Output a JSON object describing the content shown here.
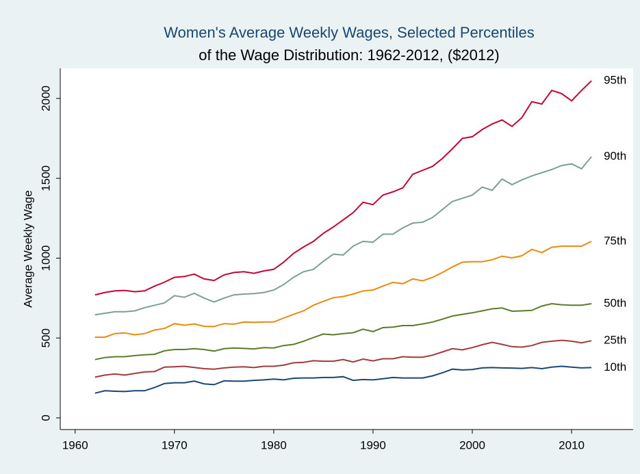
{
  "chart_data": {
    "type": "line",
    "title": "Women's Average Weekly Wages, Selected Percentiles",
    "subtitle": "of the Wage Distribution: 1962-2012, ($2012)",
    "y_label": "Average Weekly Wage",
    "x": [
      1962,
      1963,
      1964,
      1965,
      1966,
      1967,
      1968,
      1969,
      1970,
      1971,
      1972,
      1973,
      1974,
      1975,
      1976,
      1977,
      1978,
      1979,
      1980,
      1981,
      1982,
      1983,
      1984,
      1985,
      1986,
      1987,
      1988,
      1989,
      1990,
      1991,
      1992,
      1993,
      1994,
      1995,
      1996,
      1997,
      1998,
      1999,
      2000,
      2001,
      2002,
      2003,
      2004,
      2005,
      2006,
      2007,
      2008,
      2009,
      2010,
      2011,
      2012
    ],
    "series": [
      {
        "name": "95th",
        "color": "#c10534",
        "values": [
          770,
          785,
          795,
          798,
          790,
          795,
          825,
          850,
          880,
          885,
          900,
          870,
          860,
          895,
          910,
          915,
          905,
          920,
          930,
          975,
          1030,
          1070,
          1105,
          1155,
          1195,
          1240,
          1285,
          1350,
          1335,
          1395,
          1415,
          1440,
          1525,
          1550,
          1575,
          1625,
          1685,
          1750,
          1760,
          1805,
          1840,
          1865,
          1825,
          1880,
          1980,
          1965,
          2050,
          2030,
          1985,
          2050,
          2110
        ]
      },
      {
        "name": "90th",
        "color": "#7f9c9a",
        "values": [
          645,
          655,
          665,
          665,
          670,
          690,
          705,
          720,
          765,
          755,
          780,
          750,
          725,
          750,
          770,
          775,
          778,
          785,
          800,
          835,
          880,
          915,
          930,
          980,
          1025,
          1020,
          1075,
          1105,
          1100,
          1150,
          1150,
          1190,
          1220,
          1225,
          1255,
          1305,
          1355,
          1375,
          1395,
          1445,
          1425,
          1495,
          1460,
          1490,
          1515,
          1535,
          1555,
          1580,
          1590,
          1560,
          1635
        ]
      },
      {
        "name": "75th",
        "color": "#ea8a0c",
        "values": [
          505,
          505,
          528,
          532,
          520,
          528,
          550,
          560,
          590,
          580,
          588,
          573,
          572,
          590,
          587,
          600,
          598,
          600,
          600,
          625,
          648,
          670,
          705,
          730,
          752,
          760,
          775,
          795,
          800,
          825,
          848,
          840,
          870,
          858,
          880,
          910,
          945,
          975,
          978,
          978,
          990,
          1012,
          1002,
          1015,
          1055,
          1035,
          1068,
          1075,
          1075,
          1075,
          1105
        ]
      },
      {
        "name": "50th",
        "color": "#5b7a2c",
        "values": [
          365,
          378,
          383,
          383,
          390,
          395,
          398,
          420,
          428,
          428,
          433,
          428,
          418,
          433,
          438,
          435,
          432,
          440,
          438,
          453,
          460,
          480,
          503,
          525,
          520,
          528,
          533,
          555,
          540,
          565,
          568,
          578,
          578,
          588,
          600,
          618,
          638,
          648,
          658,
          670,
          683,
          688,
          668,
          670,
          673,
          700,
          715,
          708,
          705,
          705,
          715
        ]
      },
      {
        "name": "25th",
        "color": "#a03a3c",
        "values": [
          255,
          268,
          275,
          268,
          278,
          288,
          290,
          318,
          320,
          323,
          316,
          308,
          305,
          313,
          318,
          320,
          315,
          323,
          323,
          330,
          345,
          348,
          358,
          355,
          355,
          365,
          350,
          368,
          357,
          370,
          370,
          383,
          380,
          380,
          393,
          413,
          433,
          426,
          440,
          458,
          473,
          460,
          446,
          443,
          453,
          473,
          480,
          486,
          480,
          470,
          483
        ]
      },
      {
        "name": "10th",
        "color": "#1a476f",
        "values": [
          155,
          170,
          167,
          165,
          170,
          170,
          190,
          215,
          220,
          220,
          230,
          213,
          208,
          232,
          230,
          230,
          235,
          238,
          243,
          238,
          248,
          250,
          250,
          253,
          253,
          258,
          235,
          240,
          238,
          245,
          253,
          250,
          250,
          250,
          263,
          283,
          305,
          300,
          303,
          313,
          315,
          313,
          312,
          310,
          315,
          308,
          318,
          323,
          318,
          313,
          315
        ]
      }
    ],
    "xlim": [
      1958.5,
      2016.2
    ],
    "xticks": [
      1960,
      1970,
      1980,
      1990,
      2000,
      2010
    ],
    "ylim": [
      -73,
      2188
    ],
    "yticks": [
      0,
      500,
      1000,
      1500,
      2000
    ],
    "title_color": "#1a476f",
    "grid": false
  }
}
